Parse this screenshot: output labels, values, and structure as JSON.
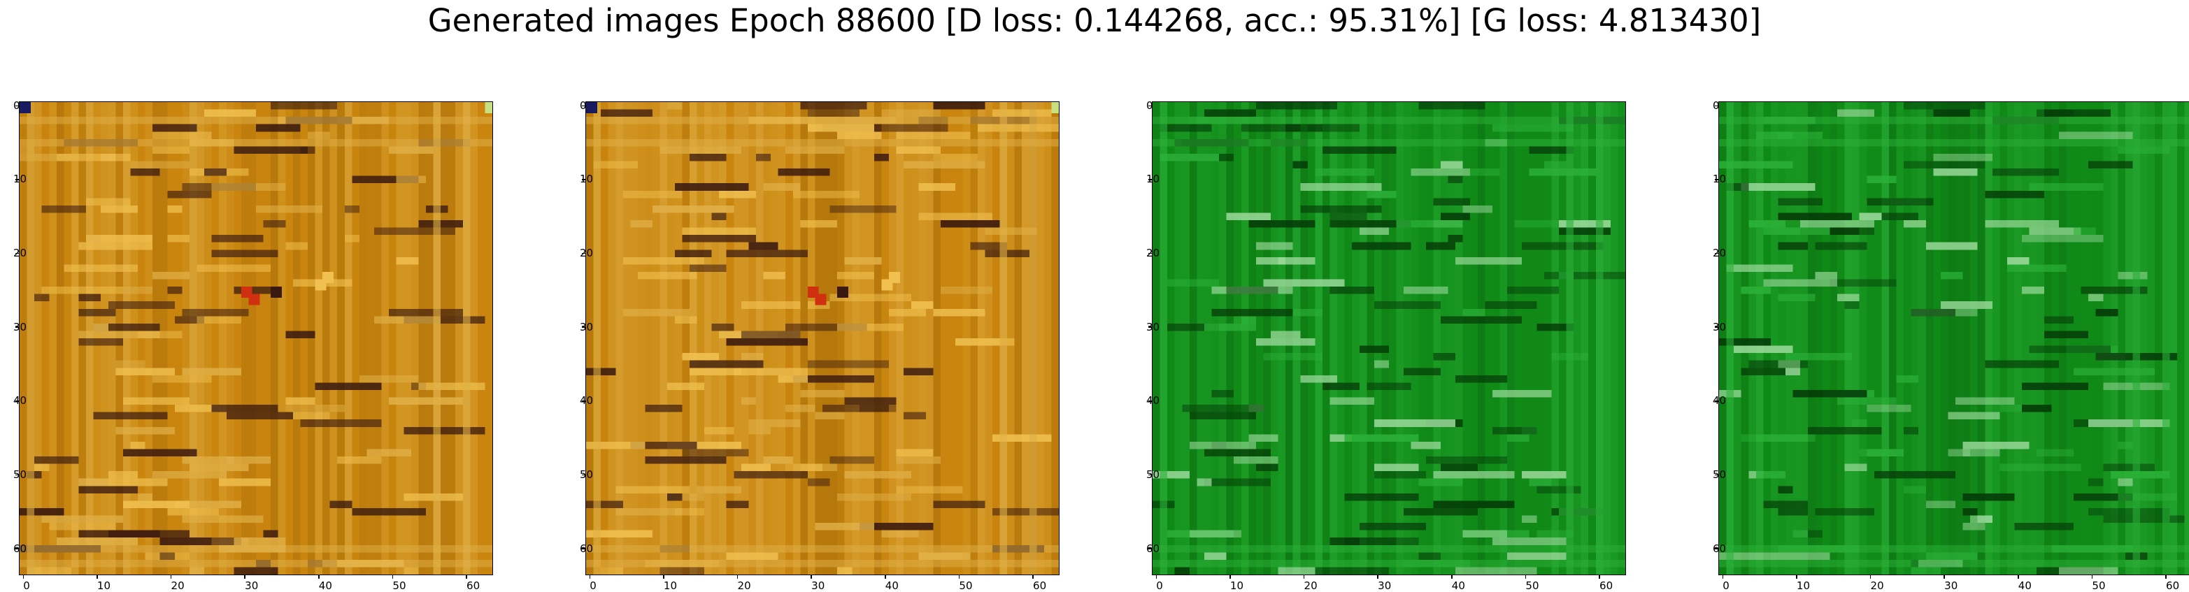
{
  "figure": {
    "title": "Generated images Epoch 88600 [D loss: 0.144268, acc.: 95.31%] [G loss: 4.813430]"
  },
  "panels": [
    {
      "name": "sample-1",
      "palette": "orange",
      "tint": [
        "#c9850f",
        "#d9a030",
        "#a86e0a",
        "#e0b048"
      ],
      "dark": "#3a1a10",
      "bright": "#f0c050",
      "accent": "#d03010"
    },
    {
      "name": "sample-2",
      "palette": "orange",
      "tint": [
        "#c9850f",
        "#d9a030",
        "#a86e0a",
        "#e0b048"
      ],
      "dark": "#3a1a10",
      "bright": "#f0c050",
      "accent": "#d03010"
    },
    {
      "name": "sample-3",
      "palette": "green",
      "tint": [
        "#118a18",
        "#1fa02a",
        "#0c7012",
        "#2bb038"
      ],
      "dark": "#053a08",
      "bright": "#9ad89a",
      "accent": "#0a5010"
    },
    {
      "name": "sample-4",
      "palette": "green",
      "tint": [
        "#118a18",
        "#1fa02a",
        "#0c7012",
        "#2bb038"
      ],
      "dark": "#053a08",
      "bright": "#9ad89a",
      "accent": "#0a5010"
    }
  ],
  "axes": {
    "x_ticks": [
      0,
      10,
      20,
      30,
      40,
      50,
      60
    ],
    "y_ticks": [
      0,
      10,
      20,
      30,
      40,
      50,
      60
    ],
    "xlim": [
      0,
      64
    ],
    "ylim": [
      0,
      64
    ]
  }
}
